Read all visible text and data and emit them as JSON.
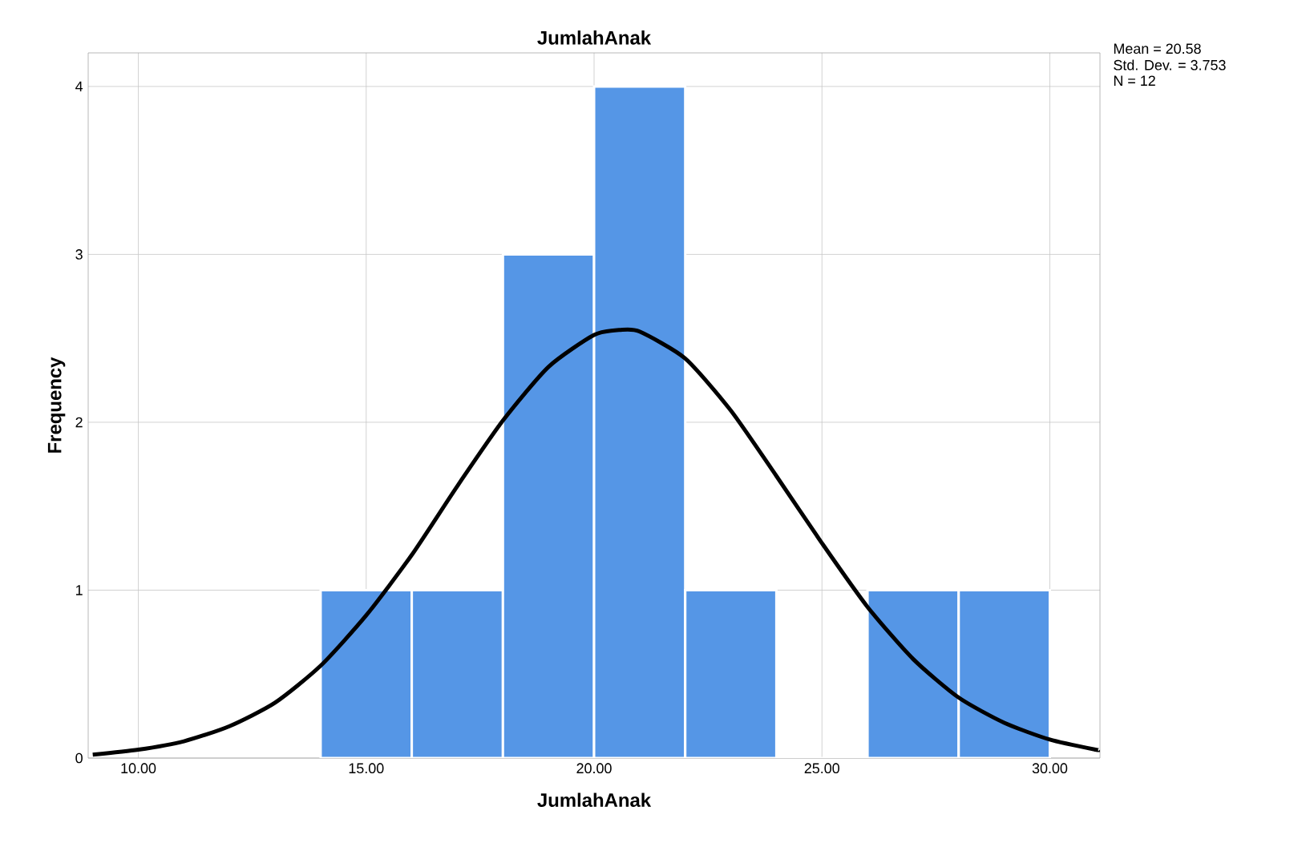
{
  "chart_data": {
    "type": "histogram",
    "title": "JumlahAnak",
    "xlabel": "JumlahAnak",
    "ylabel": "Frequency",
    "series": [
      {
        "color": "#5596e6",
        "bins": [
          14,
          16,
          18,
          20,
          22,
          24,
          26,
          28,
          30
        ],
        "values": [
          1,
          1,
          3,
          4,
          1,
          0,
          1,
          1
        ]
      },
      {
        "type": "line",
        "color": "#000000",
        "x": [
          9,
          10,
          11,
          12,
          13,
          14,
          15,
          16,
          17,
          18,
          19,
          20,
          20.58,
          21,
          22,
          23,
          24,
          25,
          26,
          27,
          28,
          29,
          30,
          31,
          31.1
        ],
        "values": [
          0.02,
          0.05,
          0.1,
          0.19,
          0.33,
          0.55,
          0.85,
          1.21,
          1.62,
          2.01,
          2.33,
          2.52,
          2.55,
          2.54,
          2.38,
          2.07,
          1.68,
          1.28,
          0.9,
          0.59,
          0.36,
          0.21,
          0.11,
          0.05,
          0.05
        ]
      }
    ],
    "xlim": [
      8.9,
      31.1
    ],
    "ylim": [
      0,
      4.2
    ],
    "xticks": [
      {
        "value": 10,
        "label": "10.00"
      },
      {
        "value": 15,
        "label": "15.00"
      },
      {
        "value": 20,
        "label": "20.00"
      },
      {
        "value": 25,
        "label": "25.00"
      },
      {
        "value": 30,
        "label": "30.00"
      }
    ],
    "yticks": [
      0,
      1,
      2,
      3,
      4
    ],
    "grid": true,
    "annotations": [
      "Mean = 20.58",
      "Std. Dev. = 3.753",
      "N = 12"
    ]
  }
}
